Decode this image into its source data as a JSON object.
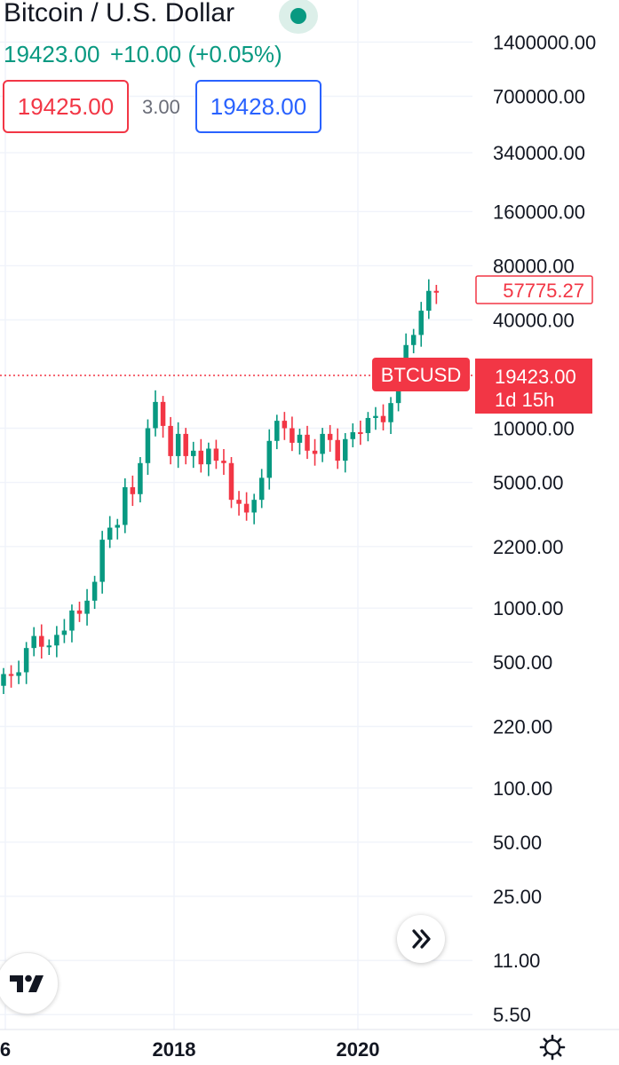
{
  "header": {
    "title": "Bitcoin / U.S. Dollar",
    "price": "19423.00",
    "change": "+10.00 (+0.05%)",
    "sell_price": "19425.00",
    "spread": "3.00",
    "buy_price": "19428.00"
  },
  "chart_data": {
    "type": "candlestick",
    "y_scale": "log",
    "y_tick_labels": [
      "1400000.00",
      "700000.00",
      "340000.00",
      "160000.00",
      "80000.00",
      "40000.00",
      "10000.00",
      "5000.00",
      "2200.00",
      "1000.00",
      "500.00",
      "220.00",
      "100.00",
      "50.00",
      "25.00",
      "11.00",
      "5.50"
    ],
    "x_tick_labels": [
      "6",
      "2018",
      "2020"
    ],
    "price_line_label": "BTCUSD",
    "current_price": "19423.00",
    "countdown": "1d 15h",
    "high_label": "57775.27",
    "colors": {
      "up": "#089981",
      "down": "#f23645",
      "grid": "#f0f3fa"
    }
  },
  "controls": {
    "scroll_icon": "double-chevron-right-icon",
    "logo": "tradingview-logo",
    "settings_icon": "gear-icon"
  }
}
